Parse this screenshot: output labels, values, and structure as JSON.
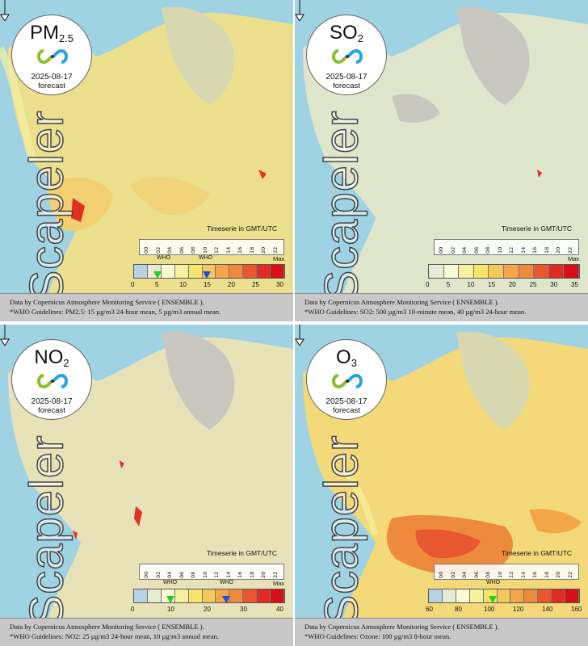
{
  "panels": [
    {
      "pollutant_base": "PM",
      "pollutant_sub": "2.5",
      "date": "2025-08-17",
      "subtitle": "forecast",
      "watermark": "Scapeler",
      "timeserie_label": "Timeserie in GMT/UTC",
      "hours": [
        "00",
        "02",
        "04",
        "06",
        "08",
        "10",
        "12",
        "14",
        "16",
        "18",
        "20",
        "22"
      ],
      "scale_ticks": [
        "0",
        "5",
        "10",
        "15",
        "20",
        "25",
        "30"
      ],
      "max_label": "Max",
      "who_labels": [
        "WHO",
        "WHO"
      ],
      "who_markers": [
        {
          "value": 5,
          "color": "#22cc22"
        },
        {
          "value": 15,
          "color": "#1f4fd6"
        }
      ],
      "scale_colors": [
        "#b7d2e0",
        "#e6ecd4",
        "#fafad2",
        "#f7f0a0",
        "#f7e56b",
        "#f4c95a",
        "#f2a648",
        "#ee8a3e",
        "#e8572f",
        "#e02d23",
        "#d60f18"
      ],
      "footer_line1": "Data by Copernicus Atmosphere Monitoring Service ( ENSEMBLE ).",
      "footer_line2": "*WHO Guidelines: PM2.5: 15 µg/m3 24-hour mean, 5 µg/m3 annual mean.",
      "tint": "#f0e08a"
    },
    {
      "pollutant_base": "SO",
      "pollutant_sub": "2",
      "date": "2025-08-17",
      "subtitle": "forecast",
      "watermark": "Scapeler",
      "timeserie_label": "Timeserie in GMT/UTC",
      "hours": [
        "00",
        "02",
        "04",
        "06",
        "08",
        "10",
        "12",
        "14",
        "16",
        "18",
        "20",
        "22"
      ],
      "scale_ticks": [
        "0",
        "5",
        "10",
        "15",
        "20",
        "25",
        "30",
        "35"
      ],
      "max_label": "Max",
      "who_labels": [],
      "who_markers": [],
      "scale_colors": [
        "#e6ecd4",
        "#fafad2",
        "#f7f0a0",
        "#f7e56b",
        "#f4c95a",
        "#f2a648",
        "#ee8a3e",
        "#e8572f",
        "#e02d23",
        "#d60f18"
      ],
      "footer_line1": "Data by Copernicus Atmosphere Monitoring Service ( ENSEMBLE ).",
      "footer_line2": "*WHO Guidelines: SO2: 500 µg/m3 10-minute mean, 40 µg/m3 24-hour mean.",
      "tint": "#dfe6cc"
    },
    {
      "pollutant_base": "NO",
      "pollutant_sub": "2",
      "date": "2025-08-17",
      "subtitle": "forecast",
      "watermark": "Scapeler",
      "timeserie_label": "Timeserie in GMT/UTC",
      "hours": [
        "00",
        "02",
        "04",
        "06",
        "08",
        "10",
        "12",
        "14",
        "16",
        "18",
        "20",
        "22"
      ],
      "scale_ticks": [
        "0",
        "10",
        "20",
        "30",
        "40"
      ],
      "max_label": "Max",
      "who_labels": [
        "WHO",
        "WHO"
      ],
      "who_markers": [
        {
          "value": 10,
          "color": "#22cc22"
        },
        {
          "value": 25,
          "color": "#1f4fd6"
        }
      ],
      "scale_colors": [
        "#b7d2e0",
        "#e6ecd4",
        "#fafad2",
        "#f7f0a0",
        "#f7e56b",
        "#f4c95a",
        "#f2a648",
        "#ee8a3e",
        "#e8572f",
        "#e02d23",
        "#d60f18"
      ],
      "footer_line1": "Data by Copernicus Atmosphere Monitoring Service ( ENSEMBLE ).",
      "footer_line2": "*WHO Guidelines: NO2: 25 µg/m3 24-hour mean, 10 µg/m3 annual mean.",
      "tint": "#e8e2b8"
    },
    {
      "pollutant_base": "O",
      "pollutant_sub": "3",
      "date": "2025-08-17",
      "subtitle": "forecast",
      "watermark": "Scapeler",
      "timeserie_label": "Timeserie in GMT/UTC",
      "hours": [
        "00",
        "02",
        "04",
        "06",
        "08",
        "10",
        "12",
        "14",
        "16",
        "18",
        "20",
        "22"
      ],
      "scale_ticks": [
        "60",
        "80",
        "100",
        "120",
        "140",
        "160"
      ],
      "max_label": "",
      "who_labels": [
        "WHO"
      ],
      "who_markers": [
        {
          "value": 100,
          "color": "#22cc22"
        }
      ],
      "scale_colors": [
        "#b7d2e0",
        "#e6ecd4",
        "#fafad2",
        "#f7f0a0",
        "#f7e56b",
        "#f4c95a",
        "#f2a648",
        "#ee8a3e",
        "#e8572f",
        "#e02d23",
        "#d60f18"
      ],
      "footer_line1": "Data by Copernicus Atmosphere Monitoring Service ( ENSEMBLE ).",
      "footer_line2": "*WHO Guidelines: Ozone: 100 µg/m3 8-hour mean.",
      "tint": "#f3d97a"
    }
  ]
}
